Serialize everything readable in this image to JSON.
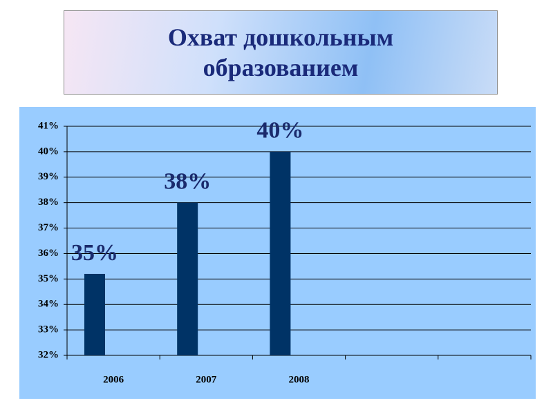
{
  "chart_data": {
    "type": "bar",
    "title": "Охват дошкольным образованием",
    "categories": [
      "2006",
      "2007",
      "2008",
      null,
      null
    ],
    "values": [
      35.2,
      38,
      40,
      null,
      null
    ],
    "value_labels": [
      "35%",
      "38%",
      "40%",
      null,
      null
    ],
    "color": "#003366",
    "ylim": [
      32,
      41
    ],
    "yticks": [
      {
        "value": 32,
        "label": "32%"
      },
      {
        "value": 33,
        "label": "33%"
      },
      {
        "value": 34,
        "label": "34%"
      },
      {
        "value": 35,
        "label": "35%"
      },
      {
        "value": 36,
        "label": "36%"
      },
      {
        "value": 37,
        "label": "37%"
      },
      {
        "value": 38,
        "label": "38%"
      },
      {
        "value": 39,
        "label": "39%"
      },
      {
        "value": 40,
        "label": "40%"
      },
      {
        "value": 41,
        "label": "41%"
      }
    ],
    "grid": true
  }
}
